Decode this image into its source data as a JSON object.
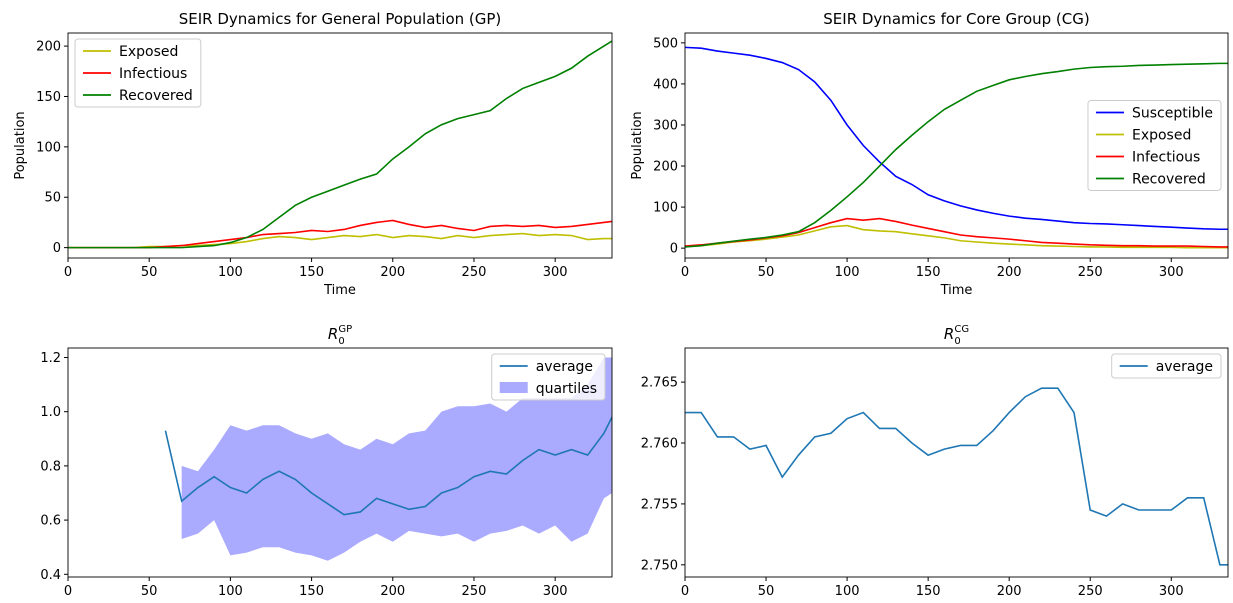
{
  "chart_data": [
    {
      "type": "line",
      "title": "SEIR Dynamics for General Population (GP)",
      "x_label": "Time",
      "y_label": "Population",
      "x": [
        0,
        10,
        20,
        30,
        40,
        50,
        60,
        70,
        80,
        90,
        100,
        110,
        120,
        130,
        140,
        150,
        160,
        170,
        180,
        190,
        200,
        210,
        220,
        230,
        240,
        250,
        260,
        270,
        280,
        290,
        300,
        310,
        320,
        330,
        335
      ],
      "series": [
        {
          "name": "Exposed",
          "color": "#bfbf00",
          "values": [
            0,
            0,
            0,
            0,
            0,
            1,
            1,
            2,
            2,
            3,
            4,
            6,
            9,
            11,
            10,
            8,
            10,
            12,
            11,
            13,
            10,
            12,
            11,
            9,
            12,
            10,
            12,
            13,
            14,
            12,
            13,
            12,
            8,
            9,
            9
          ]
        },
        {
          "name": "Infectious",
          "color": "#ff0000",
          "values": [
            0,
            0,
            0,
            0,
            0,
            0,
            1,
            2,
            4,
            6,
            8,
            10,
            13,
            14,
            15,
            17,
            16,
            18,
            22,
            25,
            27,
            23,
            20,
            22,
            19,
            17,
            21,
            22,
            21,
            22,
            20,
            21,
            23,
            25,
            26
          ]
        },
        {
          "name": "Recovered",
          "color": "#008000",
          "values": [
            0,
            0,
            0,
            0,
            0,
            0,
            0,
            0,
            1,
            2,
            5,
            10,
            18,
            30,
            42,
            50,
            56,
            62,
            68,
            73,
            88,
            100,
            113,
            122,
            128,
            132,
            136,
            148,
            158,
            164,
            170,
            178,
            190,
            200,
            205
          ]
        }
      ],
      "xlim": [
        0,
        335
      ],
      "ylim": [
        -10.3,
        213
      ],
      "xticks": [
        0,
        50,
        100,
        150,
        200,
        250,
        300
      ],
      "yticks": [
        0,
        50,
        100,
        150,
        200
      ],
      "legend": "upper left"
    },
    {
      "type": "line",
      "title": "SEIR Dynamics for Core Group (CG)",
      "x_label": "Time",
      "y_label": "Population",
      "x": [
        0,
        10,
        20,
        30,
        40,
        50,
        60,
        70,
        80,
        90,
        100,
        110,
        120,
        130,
        140,
        150,
        160,
        170,
        180,
        190,
        200,
        210,
        220,
        230,
        240,
        250,
        260,
        270,
        280,
        290,
        300,
        310,
        320,
        330,
        335
      ],
      "series": [
        {
          "name": "Susceptible",
          "color": "#0000ff",
          "values": [
            489,
            487,
            480,
            475,
            470,
            462,
            452,
            435,
            405,
            360,
            300,
            250,
            210,
            175,
            155,
            130,
            115,
            103,
            93,
            85,
            78,
            73,
            70,
            66,
            62,
            60,
            59,
            57,
            55,
            53,
            51,
            49,
            47,
            46,
            46
          ]
        },
        {
          "name": "Exposed",
          "color": "#bfbf00",
          "values": [
            4,
            6,
            10,
            15,
            18,
            22,
            27,
            32,
            42,
            52,
            55,
            45,
            42,
            40,
            35,
            30,
            25,
            18,
            15,
            12,
            10,
            8,
            6,
            5,
            4,
            3,
            3,
            2,
            2,
            2,
            2,
            1,
            1,
            1,
            1
          ]
        },
        {
          "name": "Infectious",
          "color": "#ff0000",
          "values": [
            5,
            8,
            12,
            16,
            20,
            25,
            30,
            38,
            50,
            62,
            72,
            68,
            72,
            65,
            56,
            48,
            40,
            32,
            28,
            25,
            22,
            18,
            14,
            12,
            10,
            8,
            7,
            6,
            6,
            5,
            5,
            5,
            4,
            3,
            3
          ]
        },
        {
          "name": "Recovered",
          "color": "#008000",
          "values": [
            3,
            6,
            12,
            17,
            22,
            26,
            32,
            40,
            62,
            92,
            125,
            160,
            200,
            240,
            275,
            308,
            338,
            360,
            382,
            396,
            410,
            418,
            425,
            430,
            436,
            440,
            442,
            443,
            445,
            446,
            447,
            448,
            449,
            450,
            450
          ]
        }
      ],
      "xlim": [
        0,
        335
      ],
      "ylim": [
        -24,
        524
      ],
      "xticks": [
        0,
        50,
        100,
        150,
        200,
        250,
        300
      ],
      "yticks": [
        0,
        100,
        200,
        300,
        400,
        500
      ],
      "legend": "center right"
    },
    {
      "type": "line",
      "title": {
        "base": "R",
        "sub": "0",
        "sup": "GP"
      },
      "x": [
        0,
        10,
        20,
        30,
        40,
        50,
        60,
        70,
        80,
        90,
        100,
        110,
        120,
        130,
        140,
        150,
        160,
        170,
        180,
        190,
        200,
        210,
        220,
        230,
        240,
        250,
        260,
        270,
        280,
        290,
        300,
        310,
        320,
        330,
        335
      ],
      "series": [
        {
          "name": "average",
          "color": "#1f77b4",
          "values": [
            null,
            null,
            null,
            null,
            null,
            null,
            0.93,
            0.67,
            0.72,
            0.76,
            0.72,
            0.7,
            0.75,
            0.78,
            0.75,
            0.7,
            0.66,
            0.62,
            0.63,
            0.68,
            0.66,
            0.64,
            0.65,
            0.7,
            0.72,
            0.76,
            0.78,
            0.77,
            0.82,
            0.86,
            0.84,
            0.86,
            0.84,
            0.92,
            0.98
          ]
        }
      ],
      "bands": [
        {
          "name": "quartiles",
          "color": "#aaaaff",
          "low": [
            null,
            null,
            null,
            null,
            null,
            null,
            null,
            0.53,
            0.55,
            0.6,
            0.47,
            0.48,
            0.5,
            0.5,
            0.48,
            0.47,
            0.45,
            0.48,
            0.52,
            0.55,
            0.52,
            0.56,
            0.55,
            0.54,
            0.55,
            0.52,
            0.55,
            0.56,
            0.58,
            0.55,
            0.58,
            0.52,
            0.55,
            0.68,
            0.7
          ],
          "high": [
            null,
            null,
            null,
            null,
            null,
            null,
            null,
            0.8,
            0.78,
            0.86,
            0.95,
            0.93,
            0.95,
            0.95,
            0.92,
            0.9,
            0.92,
            0.88,
            0.86,
            0.9,
            0.88,
            0.92,
            0.93,
            1.0,
            1.02,
            1.02,
            1.03,
            1.0,
            1.05,
            1.05,
            1.05,
            1.05,
            1.1,
            1.2,
            1.2
          ]
        }
      ],
      "xlim": [
        0,
        335
      ],
      "ylim": [
        0.39,
        1.235
      ],
      "xticks": [
        0,
        50,
        100,
        150,
        200,
        250,
        300
      ],
      "yticks": [
        0.4,
        0.6,
        0.8,
        {
          "value": 1,
          "label": "1.0"
        },
        1.2
      ],
      "legend": "upper right"
    },
    {
      "type": "line",
      "title": {
        "base": "R",
        "sub": "0",
        "sup": "CG"
      },
      "x": [
        0,
        10,
        20,
        30,
        40,
        50,
        60,
        70,
        80,
        90,
        100,
        110,
        120,
        130,
        140,
        150,
        160,
        170,
        180,
        190,
        200,
        210,
        220,
        230,
        240,
        250,
        260,
        270,
        280,
        290,
        300,
        310,
        320,
        330,
        335
      ],
      "series": [
        {
          "name": "average",
          "color": "#1f77b4",
          "values": [
            2.7625,
            2.7625,
            2.7605,
            2.7605,
            2.7595,
            2.7598,
            2.7572,
            2.759,
            2.7605,
            2.7608,
            2.762,
            2.7625,
            2.7612,
            2.7612,
            2.76,
            2.759,
            2.7595,
            2.7598,
            2.7598,
            2.761,
            2.7625,
            2.7638,
            2.7645,
            2.7645,
            2.7625,
            2.7545,
            2.754,
            2.755,
            2.7545,
            2.7545,
            2.7545,
            2.7555,
            2.7555,
            2.75,
            2.75
          ]
        }
      ],
      "xlim": [
        0,
        335
      ],
      "ylim": [
        2.749,
        2.7678
      ],
      "xticks": [
        0,
        50,
        100,
        150,
        200,
        250,
        300
      ],
      "yticks": [
        {
          "value": 2.75,
          "label": "2.750"
        },
        {
          "value": 2.755,
          "label": "2.755"
        },
        {
          "value": 2.76,
          "label": "2.760"
        },
        {
          "value": 2.765,
          "label": "2.765"
        }
      ],
      "legend": "upper right"
    }
  ]
}
